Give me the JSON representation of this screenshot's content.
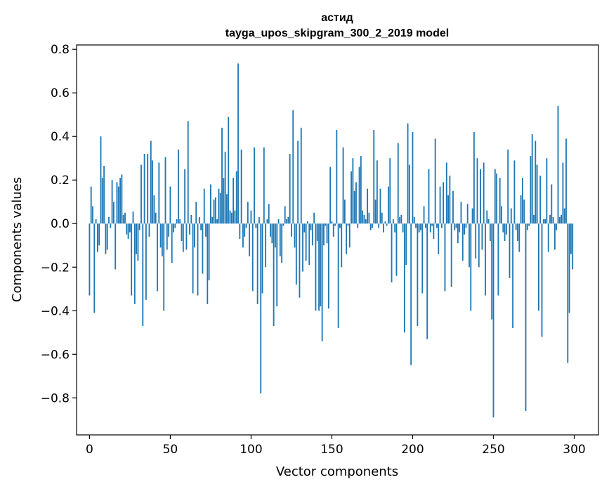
{
  "chart_data": {
    "type": "bar",
    "title_line1": "астид",
    "title_line2": "tayga_upos_skipgram_300_2_2019 model",
    "xlabel": "Vector components",
    "ylabel": "Components values",
    "xlim": [
      -8,
      315
    ],
    "ylim": [
      -0.97,
      0.82
    ],
    "xticks": [
      0,
      50,
      100,
      150,
      200,
      250,
      300
    ],
    "xtick_labels": [
      "0",
      "50",
      "100",
      "150",
      "200",
      "250",
      "300"
    ],
    "yticks": [
      0.8,
      0.6,
      0.4,
      0.2,
      0.0,
      -0.2,
      -0.4,
      -0.6,
      -0.8
    ],
    "ytick_labels": [
      "0.8",
      "0.6",
      "0.4",
      "0.2",
      "0.0",
      "−0.2",
      "−0.4",
      "−0.6",
      "−0.8"
    ],
    "bar_color": "#1f77b4",
    "values": [
      -0.33,
      0.17,
      0.08,
      -0.41,
      0.02,
      -0.13,
      -0.1,
      0.4,
      0.21,
      0.265,
      -0.14,
      -0.12,
      0.03,
      -0.02,
      0.2,
      0.1,
      -0.21,
      0.19,
      0.17,
      0.21,
      0.225,
      0.04,
      0.05,
      -0.05,
      -0.07,
      -0.04,
      -0.33,
      0.055,
      -0.37,
      -0.14,
      -0.17,
      -0.03,
      0.27,
      -0.47,
      0.32,
      -0.35,
      0.32,
      -0.06,
      0.38,
      0.29,
      0.13,
      0.05,
      -0.31,
      0.28,
      -0.11,
      -0.15,
      -0.4,
      0.305,
      -0.12,
      -0.06,
      0.17,
      -0.18,
      -0.04,
      -0.02,
      0.02,
      0.34,
      0.02,
      -0.08,
      -0.13,
      0.25,
      -0.12,
      0.47,
      -0.05,
      0.04,
      -0.32,
      -0.11,
      0.1,
      -0.33,
      0.03,
      -0.03,
      -0.23,
      0.16,
      -0.06,
      -0.37,
      -0.26,
      0.18,
      0.03,
      0.11,
      0.12,
      0.02,
      0.16,
      0.14,
      0.44,
      0.21,
      0.33,
      0.135,
      0.49,
      0.06,
      0.05,
      0.21,
      0.06,
      0.24,
      0.735,
      -0.07,
      0.34,
      -0.11,
      -0.06,
      -0.02,
      0.1,
      -0.15,
      0.06,
      -0.31,
      0.35,
      -0.02,
      -0.37,
      0.03,
      -0.78,
      -0.32,
      0.35,
      -0.2,
      0.02,
      0.09,
      -0.06,
      -0.09,
      -0.47,
      -0.11,
      -0.38,
      0.02,
      -0.15,
      -0.18,
      -0.01,
      0.08,
      0.02,
      0.03,
      0.32,
      -0.06,
      0.52,
      -0.11,
      -0.28,
      0.38,
      -0.34,
      0.44,
      -0.22,
      -0.04,
      -0.17,
      0.01,
      -0.19,
      -0.03,
      -0.1,
      0.05,
      -0.4,
      -0.08,
      -0.4,
      -0.38,
      -0.54,
      -0.1,
      -0.01,
      -0.09,
      -0.39,
      0.26,
      0.01,
      -0.06,
      -0.01,
      0.43,
      -0.48,
      -0.02,
      -0.2,
      0.35,
      0.11,
      -0.14,
      -0.01,
      -0.11,
      0.24,
      0.3,
      0.15,
      0.19,
      -0.02,
      0.26,
      0.31,
      0.06,
      0.04,
      0.02,
      0.16,
      0.05,
      -0.03,
      -0.02,
      0.43,
      0.11,
      0.29,
      -0.02,
      0.16,
      0.05,
      -0.04,
      0.01,
      -0.01,
      0.17,
      0.3,
      -0.27,
      0.02,
      -0.04,
      -0.24,
      0.37,
      0.03,
      0.04,
      -0.04,
      -0.5,
      -0.19,
      0.46,
      0.27,
      -0.65,
      0.42,
      0.03,
      -0.02,
      -0.47,
      -0.04,
      -0.03,
      -0.32,
      0.08,
      -0.02,
      -0.53,
      0.25,
      -0.04,
      -0.01,
      -0.07,
      0.39,
      -0.02,
      -0.14,
      0.17,
      -0.02,
      0.19,
      -0.31,
      0.28,
      0.13,
      0.22,
      -0.29,
      0.15,
      -0.03,
      -0.02,
      -0.09,
      -0.04,
      0.1,
      -0.17,
      -0.05,
      -0.02,
      0.09,
      -0.2,
      -0.4,
      0.07,
      0.42,
      -0.16,
      0.3,
      -0.2,
      0.25,
      -0.12,
      0.28,
      -0.33,
      0.06,
      0.02,
      -0.08,
      -0.44,
      -0.89,
      0.25,
      0.23,
      -0.33,
      0.21,
      0.08,
      -0.04,
      -0.08,
      -0.05,
      0.34,
      -0.25,
      0.07,
      -0.48,
      0.29,
      -0.03,
      -0.08,
      -0.13,
      0.13,
      0.21,
      0.11,
      -0.86,
      -0.03,
      -0.01,
      0.31,
      0.41,
      0.04,
      0.38,
      0.27,
      -0.4,
      0.22,
      -0.52,
      0.02,
      0.02,
      0.3,
      -0.13,
      0.04,
      0.18,
      0.03,
      -0.12,
      -0.03,
      0.54,
      0.03,
      0.04,
      0.28,
      0.07,
      0.39,
      -0.64,
      -0.41,
      -0.14,
      -0.21
    ]
  }
}
